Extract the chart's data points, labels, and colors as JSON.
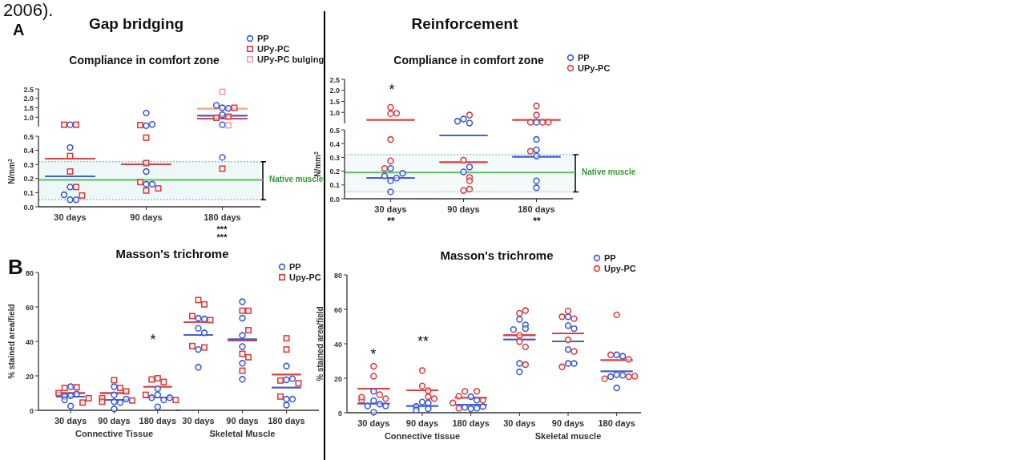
{
  "chart_data": [
    {
      "type": "scatter",
      "title": "Gap bridging",
      "subtitle": "Compliance in comfort zone",
      "categories": [
        "30 days",
        "90 days",
        "180 days"
      ],
      "ylim": [
        0.5,
        2.5
      ],
      "yticks": [
        {
          "value": 1,
          "label": "1.0"
        },
        1.5,
        {
          "value": 2,
          "label": "2.0"
        },
        2.5
      ],
      "tick_labels": "y",
      "legend": "top right",
      "series": [
        {
          "name": "PP",
          "color": "#3c5bd8",
          "marker": "circle",
          "x": [
            "30 days",
            "90 days",
            "90 days",
            "90 days",
            "180 days",
            "180 days",
            "180 days",
            "180 days",
            "180 days"
          ],
          "values": [
            0.6,
            1.22,
            0.55,
            0.62,
            1.5,
            1.47,
            1.63,
            1.13,
            0.6
          ]
        },
        {
          "name": "UPy-PC",
          "color": "#e03c3c",
          "marker": "square",
          "x": [
            "30 days",
            "30 days",
            "90 days",
            "180 days",
            "180 days",
            "180 days"
          ],
          "values": [
            0.6,
            0.6,
            0.58,
            1.5,
            1.03,
            0.97
          ]
        },
        {
          "name": "UPy-PC bulging",
          "color": "#f2a0aa",
          "marker": "square",
          "x": [
            "180 days",
            "180 days"
          ],
          "values": [
            2.35,
            0.57
          ]
        },
        {
          "type": "box",
          "color": "#e03c3c",
          "boxes": [
            null,
            null,
            {
              "low": 0.92,
              "q1": 0.92,
              "median": 0.92,
              "q3": 0.92,
              "high": 0.92
            }
          ]
        },
        {
          "type": "box",
          "color": "#3c5bd8",
          "boxes": [
            null,
            null,
            {
              "low": 1.08,
              "q1": 1.08,
              "median": 1.08,
              "q3": 1.08,
              "high": 1.08
            }
          ]
        },
        {
          "type": "box",
          "color": "#f4a582",
          "boxes": [
            null,
            null,
            {
              "low": 1.45,
              "q1": 1.45,
              "median": 1.45,
              "q3": 1.45,
              "high": 1.45
            }
          ]
        }
      ],
      "annotations": [
        "2006).",
        "A"
      ]
    },
    {
      "type": "scatter",
      "categories": [
        "30 days",
        "90 days",
        "180 days"
      ],
      "ylabel": "N/mm$^{2}$",
      "ylim": [
        0,
        0.5
      ],
      "yticks": [
        {
          "value": 0,
          "label": "0.0"
        },
        0.1,
        0.2,
        0.3,
        0.4,
        0.5
      ],
      "series": [
        {
          "color": "#3c5bd8",
          "marker": "circle",
          "x": [
            "30 days",
            "30 days",
            "30 days",
            "30 days",
            "30 days",
            "90 days",
            "90 days",
            "90 days",
            "180 days"
          ],
          "values": [
            0.42,
            0.14,
            0.05,
            0.05,
            0.085,
            0.25,
            0.16,
            0.16,
            0.35
          ]
        },
        {
          "color": "#e03c3c",
          "marker": "square",
          "x": [
            "30 days",
            "30 days",
            "30 days",
            "30 days",
            "90 days",
            "90 days",
            "90 days",
            "90 days",
            "90 days",
            "180 days"
          ],
          "values": [
            0.36,
            0.25,
            0.14,
            0.08,
            0.49,
            0.31,
            0.175,
            0.115,
            0.13,
            0.27
          ]
        },
        {
          "type": "box",
          "color": "#e03c3c",
          "boxes": [
            {
              "low": 0.34,
              "q1": 0.34,
              "median": 0.34,
              "q3": 0.34,
              "high": 0.34
            },
            {
              "low": 0.3,
              "q1": 0.3,
              "median": 0.3,
              "q3": 0.3,
              "high": 0.3
            },
            null
          ]
        },
        {
          "type": "box",
          "color": "#3c5bd8",
          "boxes": [
            {
              "low": 0.215,
              "q1": 0.215,
              "median": 0.215,
              "q3": 0.215,
              "high": 0.215
            },
            null,
            null
          ]
        }
      ],
      "bands": [
        {
          "axis": "y",
          "from": 0.05,
          "to": 0.32,
          "label": "Native muscle",
          "color": "#eef8f8"
        }
      ],
      "ref_lines": [
        {
          "axis": "y",
          "value": 0.19,
          "color": "#5cc05c",
          "line_style": "solid"
        },
        {
          "axis": "y",
          "value": 0.32,
          "color": "#8cc8c8",
          "line_style": "dotted"
        },
        {
          "axis": "y",
          "value": 0.05,
          "color": "#8cc8c8",
          "line_style": "dotted"
        }
      ],
      "annotations": [
        "***",
        "***"
      ]
    },
    {
      "type": "scatter",
      "title": "Reinforcement",
      "subtitle": "Compliance in comfort zone",
      "categories": [
        "30 days",
        "90 days",
        "180 days"
      ],
      "ylim": [
        0.5,
        2.5
      ],
      "yticks": [
        {
          "value": 1,
          "label": "1.0"
        },
        1.5,
        {
          "value": 2,
          "label": "2.0"
        },
        2.5
      ],
      "tick_labels": "y",
      "legend": "top right",
      "series": [
        {
          "name": "PP",
          "color": "#3c5bd8",
          "marker": "circle",
          "x": [
            "90 days",
            "90 days",
            "90 days",
            "180 days"
          ],
          "values": [
            0.7,
            0.52,
            0.6,
            0.55
          ]
        },
        {
          "name": "UPy-PC",
          "color": "#e03c3c",
          "marker": "circle",
          "x": [
            "30 days",
            "30 days",
            "30 days",
            "90 days",
            "180 days",
            "180 days",
            "180 days",
            "180 days",
            "180 days"
          ],
          "values": [
            1.23,
            0.94,
            0.96,
            0.88,
            1.29,
            0.88,
            0.55,
            0.55,
            0.55
          ]
        },
        {
          "type": "box",
          "color": "#e03c3c",
          "boxes": [
            {
              "low": 0.66,
              "q1": 0.66,
              "median": 0.66,
              "q3": 0.66,
              "high": 0.66
            },
            null,
            {
              "low": 0.66,
              "q1": 0.66,
              "median": 0.66,
              "q3": 0.66,
              "high": 0.66
            }
          ]
        }
      ],
      "annotations": [
        "*"
      ]
    },
    {
      "type": "scatter",
      "categories": [
        "30 days",
        "90 days",
        "180 days"
      ],
      "ylabel": "N/mm$^{2}$",
      "ylim": [
        0,
        0.5
      ],
      "yticks": [
        {
          "value": 0,
          "label": "0.0"
        },
        0.1,
        0.2,
        0.3,
        0.4,
        0.5
      ],
      "series": [
        {
          "color": "#3c5bd8",
          "marker": "circle",
          "x": [
            "30 days",
            "30 days",
            "30 days",
            "30 days",
            "30 days",
            "30 days",
            "90 days",
            "90 days",
            "180 days",
            "180 days",
            "180 days",
            "180 days",
            "180 days"
          ],
          "values": [
            0.05,
            0.13,
            0.15,
            0.165,
            0.22,
            0.185,
            0.195,
            0.23,
            0.43,
            0.355,
            0.31,
            0.13,
            0.08
          ]
        },
        {
          "color": "#e03c3c",
          "marker": "circle",
          "x": [
            "30 days",
            "30 days",
            "30 days",
            "90 days",
            "90 days",
            "90 days",
            "90 days",
            "90 days",
            "180 days"
          ],
          "values": [
            0.43,
            0.275,
            0.22,
            0.28,
            0.155,
            0.13,
            0.06,
            0.07,
            0.345
          ]
        },
        {
          "type": "box",
          "color": "#e03c3c",
          "boxes": [
            null,
            {
              "low": 0.265,
              "q1": 0.265,
              "median": 0.265,
              "q3": 0.265,
              "high": 0.265
            },
            null
          ]
        },
        {
          "type": "box",
          "color": "#3c5bd8",
          "boxes": [
            {
              "low": 0.15,
              "q1": 0.15,
              "median": 0.15,
              "q3": 0.15,
              "high": 0.15
            },
            {
              "low": 0.46,
              "q1": 0.46,
              "median": 0.46,
              "q3": 0.46,
              "high": 0.46
            },
            {
              "low": 0.305,
              "q1": 0.305,
              "median": 0.305,
              "q3": 0.305,
              "high": 0.305
            }
          ]
        }
      ],
      "bands": [
        {
          "axis": "y",
          "from": 0.05,
          "to": 0.32,
          "label": "Native muscle",
          "color": "#f4fafa"
        }
      ],
      "ref_lines": [
        {
          "axis": "y",
          "value": 0.19,
          "color": "#5cc05c",
          "line_style": "solid"
        },
        {
          "axis": "y",
          "value": 0.32,
          "color": "#8cc8c8",
          "line_style": "dotted"
        },
        {
          "axis": "y",
          "value": 0.05,
          "color": "#8cc8c8",
          "line_style": "dotted"
        }
      ],
      "annotations": [
        "**",
        "**"
      ]
    },
    {
      "type": "scatter",
      "title": "Masson's trichrome",
      "xlabel": "Connective Tissue",
      "ylabel": "% stained area/field",
      "categories": [
        "30 days",
        "90 days",
        "180 days"
      ],
      "ylim": [
        0,
        80
      ],
      "yticks": [
        0,
        20,
        40,
        60,
        80
      ],
      "series": [
        {
          "color": "#3c5bd8",
          "marker": "circle",
          "x": [
            "30 days",
            "30 days",
            "30 days",
            "30 days",
            "30 days",
            "30 days",
            "90 days",
            "90 days",
            "90 days",
            "90 days",
            "90 days",
            "90 days",
            "180 days",
            "180 days",
            "180 days",
            "180 days",
            "180 days",
            "180 days"
          ],
          "values": [
            8.5,
            13.7,
            9.5,
            8,
            6,
            2.5,
            13.7,
            9,
            5,
            4.5,
            6.5,
            0.8,
            12.6,
            9,
            6,
            7.3,
            7.3,
            2
          ]
        },
        {
          "color": "#e03c3c",
          "marker": "square",
          "x": [
            "30 days",
            "30 days",
            "30 days",
            "30 days",
            "30 days",
            "90 days",
            "90 days",
            "90 days",
            "90 days",
            "90 days",
            "90 days",
            "180 days",
            "180 days",
            "180 days",
            "180 days",
            "180 days"
          ],
          "values": [
            13.4,
            13,
            10,
            7,
            4.5,
            17.5,
            13,
            11,
            7,
            5,
            5.7,
            18.6,
            16.5,
            17.9,
            9,
            6
          ]
        },
        {
          "type": "box",
          "color": "#e03c3c",
          "boxes": [
            {
              "low": 10,
              "q1": 10,
              "median": 10,
              "q3": 10,
              "high": 10
            },
            {
              "low": 10,
              "q1": 10,
              "median": 10,
              "q3": 10,
              "high": 10
            },
            {
              "low": 13.7,
              "q1": 13.7,
              "median": 13.7,
              "q3": 13.7,
              "high": 13.7
            }
          ]
        },
        {
          "type": "box",
          "color": "#3c5bd8",
          "boxes": [
            {
              "low": 8,
              "q1": 8,
              "median": 8,
              "q3": 8,
              "high": 8
            },
            {
              "low": 6,
              "q1": 6,
              "median": 6,
              "q3": 6,
              "high": 6
            },
            {
              "low": 7.5,
              "q1": 7.5,
              "median": 7.5,
              "q3": 7.5,
              "high": 7.5
            }
          ]
        }
      ],
      "annotations": [
        "B",
        "*"
      ]
    },
    {
      "type": "scatter",
      "xlabel": "Skeletal Muscle",
      "categories": [
        "30 days",
        "90 days",
        "180 days"
      ],
      "ylim": [
        0,
        80
      ],
      "tick_labels": "x",
      "legend": "top right",
      "series": [
        {
          "name": "PP",
          "color": "#3c5bd8",
          "marker": "circle",
          "x": [
            "30 days",
            "30 days",
            "30 days",
            "30 days",
            "30 days",
            "30 days",
            "90 days",
            "90 days",
            "90 days",
            "90 days",
            "90 days",
            "90 days",
            "180 days",
            "180 days",
            "180 days",
            "180 days",
            "180 days",
            "180 days"
          ],
          "values": [
            53.5,
            53,
            47.6,
            45,
            35.3,
            25,
            63,
            53.5,
            43.5,
            37,
            27.3,
            18,
            25.7,
            17.7,
            18.3,
            6.5,
            6.5,
            3
          ]
        },
        {
          "name": "Upy-PC",
          "color": "#e03c3c",
          "marker": "square",
          "x": [
            "30 days",
            "30 days",
            "30 days",
            "30 days",
            "30 days",
            "30 days",
            "90 days",
            "90 days",
            "90 days",
            "90 days",
            "90 days",
            "90 days",
            "180 days",
            "180 days",
            "180 days",
            "180 days",
            "180 days"
          ],
          "values": [
            64,
            61.5,
            54.7,
            52.4,
            36.5,
            37.3,
            57.8,
            57.8,
            46.5,
            32.8,
            30.8,
            23,
            41.8,
            35.3,
            17.3,
            15.7,
            8
          ]
        },
        {
          "type": "box",
          "color": "#e03c3c",
          "boxes": [
            {
              "low": 51.2,
              "q1": 51.2,
              "median": 51.2,
              "q3": 51.2,
              "high": 51.2
            },
            {
              "low": 40.5,
              "q1": 40.5,
              "median": 40.5,
              "q3": 40.5,
              "high": 40.5
            },
            {
              "low": 20.8,
              "q1": 20.8,
              "median": 20.8,
              "q3": 20.8,
              "high": 20.8
            }
          ]
        },
        {
          "type": "box",
          "color": "#3c5bd8",
          "boxes": [
            {
              "low": 43.8,
              "q1": 43.8,
              "median": 43.8,
              "q3": 43.8,
              "high": 43.8
            },
            {
              "low": 41.2,
              "q1": 41.2,
              "median": 41.2,
              "q3": 41.2,
              "high": 41.2
            },
            {
              "low": 13.2,
              "q1": 13.2,
              "median": 13.2,
              "q3": 13.2,
              "high": 13.2
            }
          ]
        }
      ]
    },
    {
      "type": "scatter",
      "title": "Masson's  trichrome",
      "xlabel": "Connective tissue",
      "ylabel": "% stained area/field",
      "categories": [
        "30 days",
        "90 days",
        "180 days"
      ],
      "ylim": [
        0,
        80
      ],
      "yticks": [
        0,
        20,
        40,
        60,
        80
      ],
      "series": [
        {
          "color": "#3c5bd8",
          "marker": "circle",
          "x": [
            "30 days",
            "30 days",
            "30 days",
            "30 days",
            "30 days",
            "30 days",
            "90 days",
            "90 days",
            "90 days",
            "90 days",
            "90 days",
            "180 days",
            "180 days",
            "180 days",
            "180 days",
            "180 days",
            "180 days"
          ],
          "values": [
            12.4,
            7,
            5,
            3.9,
            3.9,
            0.3,
            6.2,
            5.7,
            3.6,
            2.3,
            1.5,
            9.3,
            7.3,
            2.3,
            2.6,
            3.1,
            3.6
          ]
        },
        {
          "color": "#e03c3c",
          "marker": "circle",
          "x": [
            "30 days",
            "30 days",
            "30 days",
            "30 days",
            "30 days",
            "30 days",
            "90 days",
            "90 days",
            "90 days",
            "90 days",
            "90 days",
            "180 days",
            "180 days",
            "180 days",
            "180 days",
            "180 days",
            "180 days"
          ],
          "values": [
            27,
            21.2,
            10.5,
            8.2,
            7.3,
            9,
            24.5,
            15.5,
            12.8,
            9.3,
            8.2,
            12.4,
            12.4,
            9.6,
            7.3,
            2.6,
            5.7
          ]
        },
        {
          "type": "box",
          "color": "#e03c3c",
          "boxes": [
            {
              "low": 14,
              "q1": 14,
              "median": 14,
              "q3": 14,
              "high": 14
            },
            {
              "low": 13,
              "q1": 13,
              "median": 13,
              "q3": 13,
              "high": 13
            },
            {
              "low": 8.7,
              "q1": 8.7,
              "median": 8.7,
              "q3": 8.7,
              "high": 8.7
            }
          ]
        },
        {
          "type": "box",
          "color": "#3c5bd8",
          "boxes": [
            {
              "low": 5.3,
              "q1": 5.3,
              "median": 5.3,
              "q3": 5.3,
              "high": 5.3
            },
            {
              "low": 3.9,
              "q1": 3.9,
              "median": 3.9,
              "q3": 3.9,
              "high": 3.9
            },
            {
              "low": 4.7,
              "q1": 4.7,
              "median": 4.7,
              "q3": 4.7,
              "high": 4.7
            }
          ]
        }
      ],
      "annotations": [
        "*",
        "**"
      ]
    },
    {
      "type": "scatter",
      "xlabel": "Skeletal muscle",
      "categories": [
        "30 days",
        "90 days",
        "180 days"
      ],
      "ylim": [
        0,
        80
      ],
      "tick_labels": "x",
      "legend": "top right",
      "series": [
        {
          "name": "PP",
          "color": "#3c5bd8",
          "marker": "circle",
          "x": [
            "30 days",
            "30 days",
            "30 days",
            "30 days",
            "30 days",
            "30 days",
            "90 days",
            "90 days",
            "90 days",
            "90 days",
            "90 days",
            "90 days",
            "180 days",
            "180 days",
            "180 days",
            "180 days",
            "180 days",
            "180 days"
          ],
          "values": [
            54.2,
            51,
            48.8,
            48.3,
            28.6,
            23.7,
            55.7,
            50.6,
            48.8,
            36.7,
            28.6,
            28.6,
            33.6,
            32.8,
            22.1,
            21.7,
            20.9,
            14.4
          ]
        },
        {
          "name": "Upy-PC",
          "color": "#e03c3c",
          "marker": "circle",
          "x": [
            "30 days",
            "30 days",
            "30 days",
            "30 days",
            "30 days",
            "30 days",
            "90 days",
            "90 days",
            "90 days",
            "90 days",
            "90 days",
            "90 days",
            "180 days",
            "180 days",
            "180 days",
            "180 days",
            "180 days",
            "180 days"
          ],
          "values": [
            57.7,
            59.3,
            44.9,
            41.3,
            38.2,
            27.9,
            59.1,
            54.6,
            55.7,
            42.3,
            35.6,
            26.6,
            56.8,
            33.6,
            31,
            20.9,
            19.7,
            21.2
          ]
        },
        {
          "type": "box",
          "color": "#e03c3c",
          "boxes": [
            {
              "low": 45,
              "q1": 45,
              "median": 45,
              "q3": 45,
              "high": 45
            },
            {
              "low": 46,
              "q1": 46,
              "median": 46,
              "q3": 46,
              "high": 46
            },
            {
              "low": 30.5,
              "q1": 30.5,
              "median": 30.5,
              "q3": 30.5,
              "high": 30.5
            }
          ]
        },
        {
          "type": "box",
          "color": "#3c5bd8",
          "boxes": [
            {
              "low": 42.5,
              "q1": 42.5,
              "median": 42.5,
              "q3": 42.5,
              "high": 42.5
            },
            {
              "low": 41.5,
              "q1": 41.5,
              "median": 41.5,
              "q3": 41.5,
              "high": 41.5
            },
            {
              "low": 24,
              "q1": 24,
              "median": 24,
              "q3": 24,
              "high": 24
            }
          ]
        }
      ]
    }
  ]
}
